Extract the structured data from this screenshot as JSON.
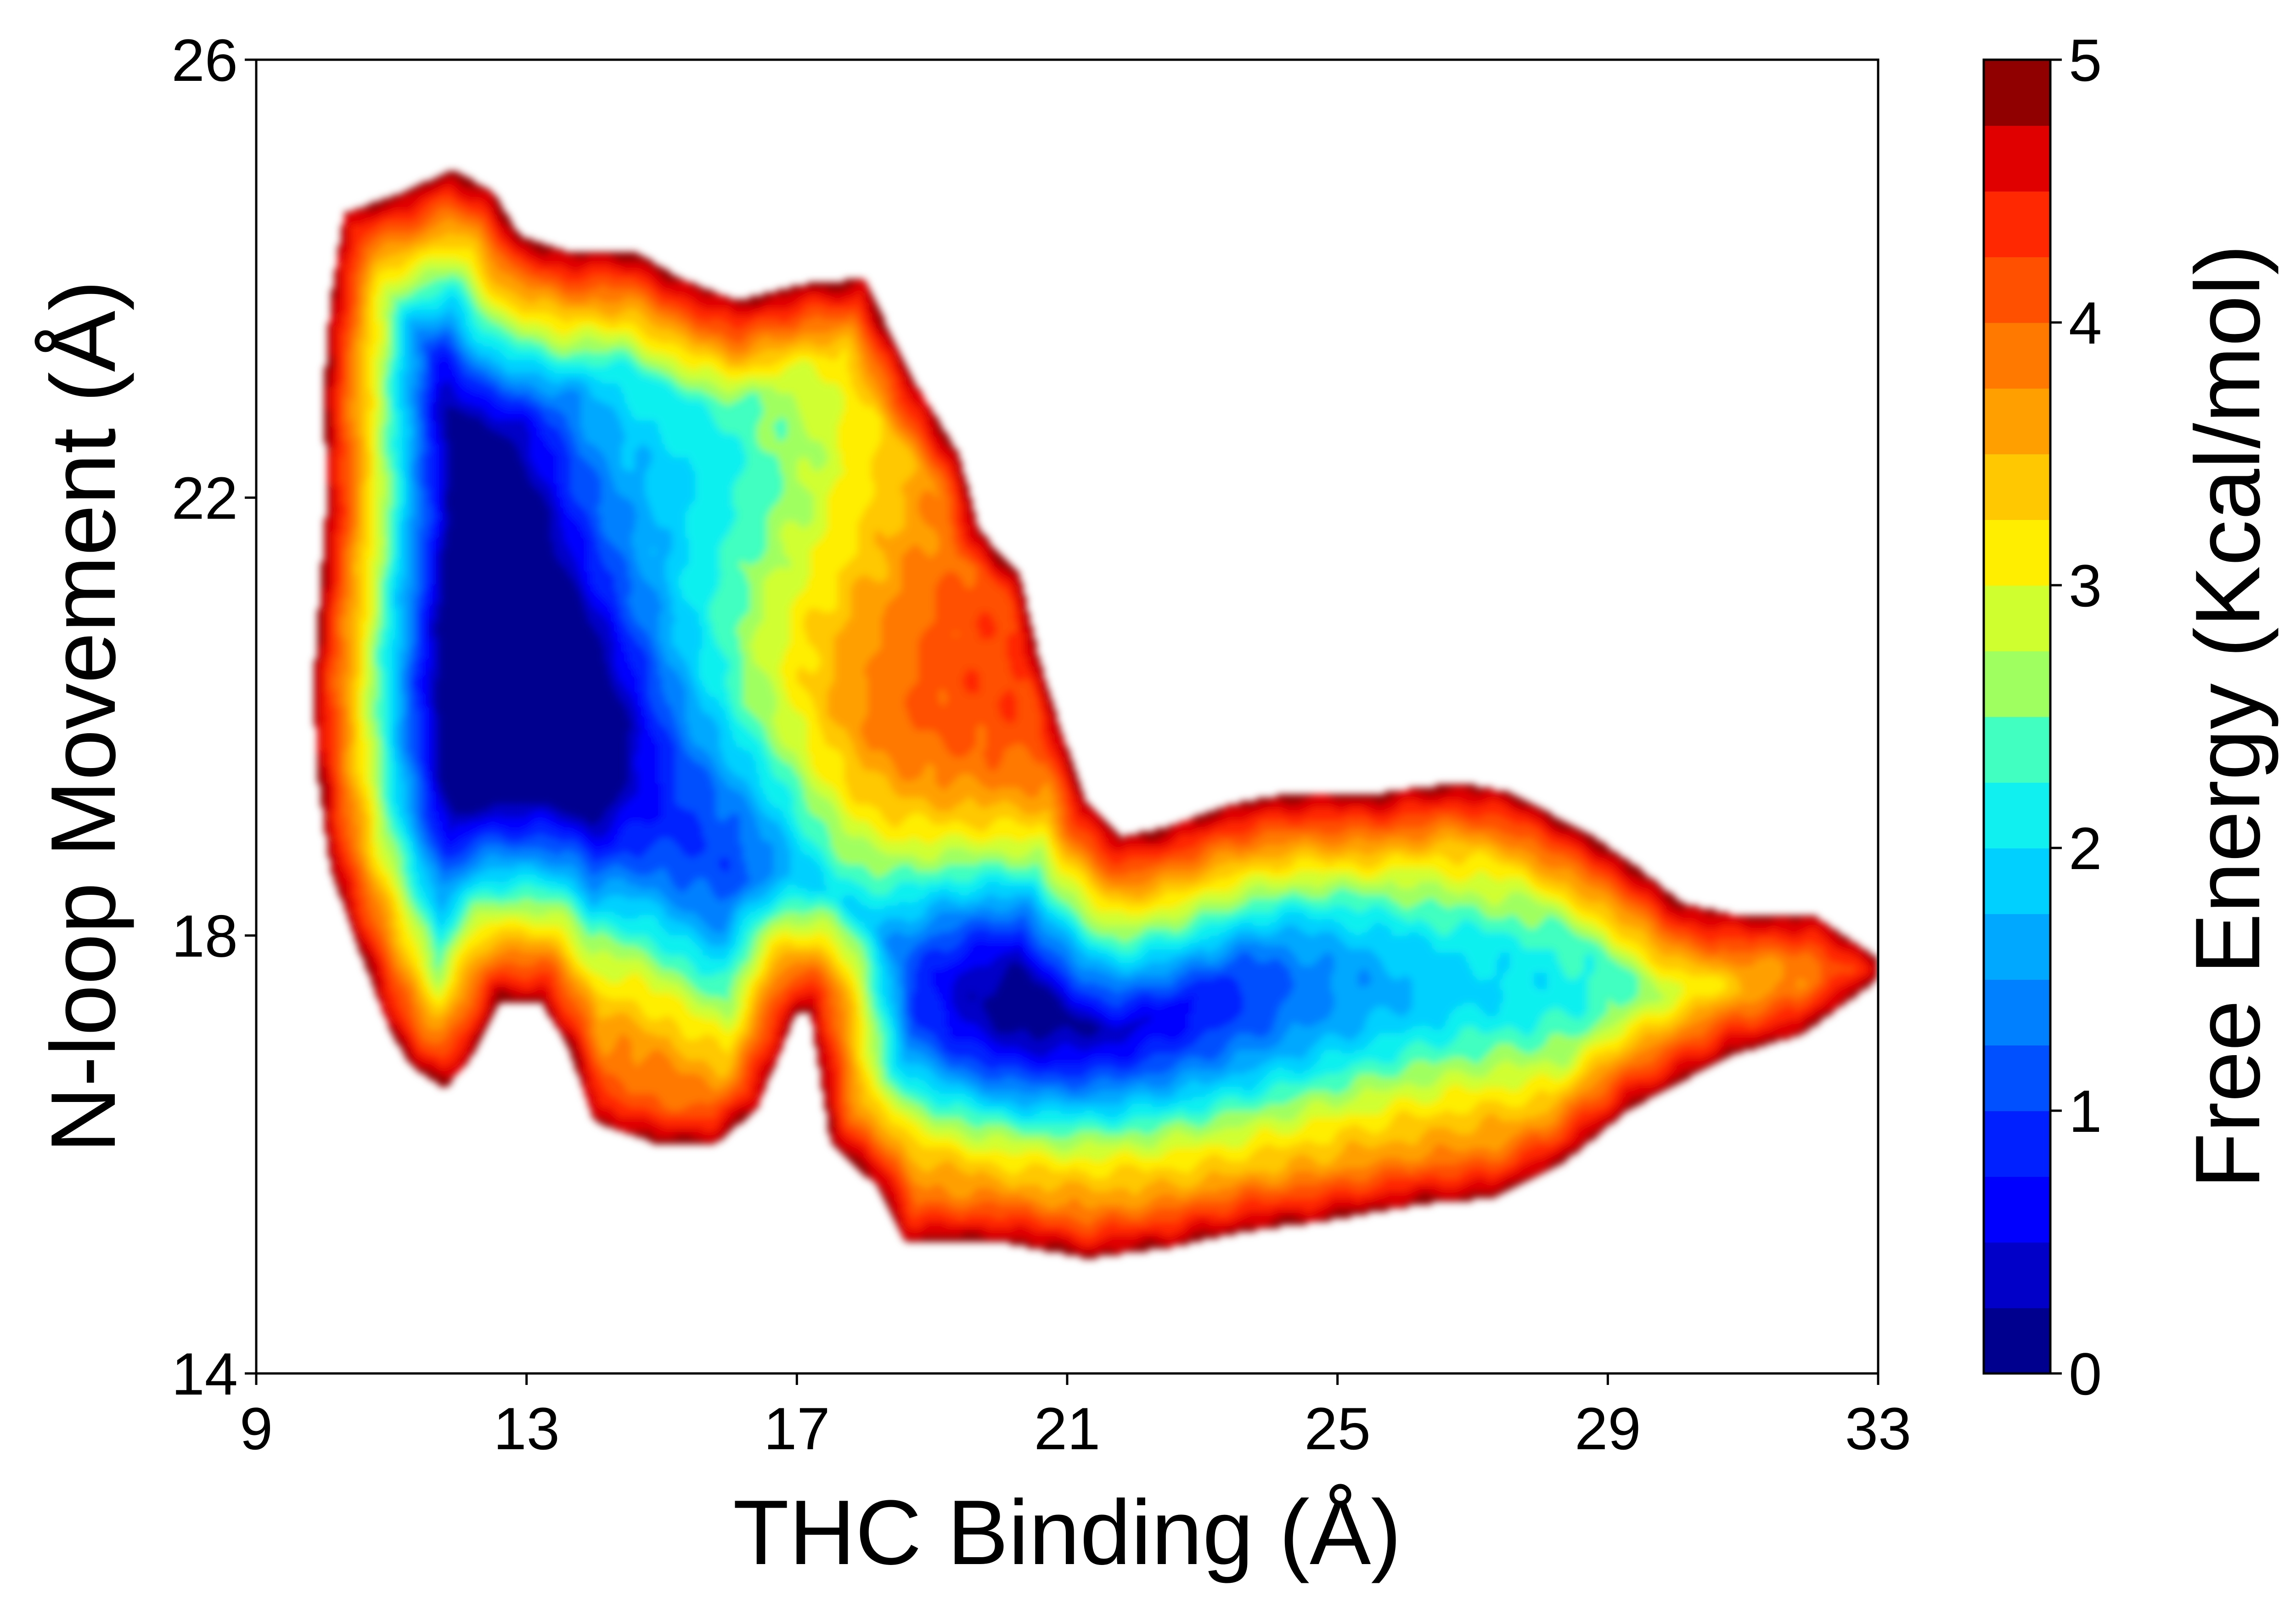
{
  "chart_data": {
    "type": "heatmap",
    "subtype": "filled-contour free energy landscape",
    "xlabel": "THC Binding (Å)",
    "ylabel": "N-loop Movement (Å)",
    "xlim": [
      9,
      33
    ],
    "ylim": [
      14,
      26
    ],
    "x_ticks": [
      "9",
      "13",
      "17",
      "21",
      "25",
      "29",
      "33"
    ],
    "y_ticks": [
      "14",
      "18",
      "22",
      "26"
    ],
    "colorbar": {
      "label": "Free Energy (Kcal/mol)",
      "range": [
        0,
        5
      ],
      "ticks": [
        "0",
        "1",
        "2",
        "3",
        "4",
        "5"
      ],
      "levels": 20,
      "colormap": "jet",
      "colors": [
        "#00008f",
        "#0000c8",
        "#0000ff",
        "#0020ff",
        "#0050ff",
        "#0080ff",
        "#00a8ff",
        "#00d0ff",
        "#10f0f0",
        "#40ffc0",
        "#70ff90",
        "#a0ff60",
        "#d0ff30",
        "#ffee00",
        "#ffc800",
        "#ffa000",
        "#ff7800",
        "#ff5000",
        "#ff2800",
        "#e00000",
        "#900000"
      ]
    },
    "minima": [
      {
        "x": 11.8,
        "y": 21.2,
        "energy": 0.1
      },
      {
        "x": 13.6,
        "y": 19.6,
        "energy": 0.4
      },
      {
        "x": 16.0,
        "y": 18.6,
        "energy": 0.6
      },
      {
        "x": 20.5,
        "y": 17.1,
        "energy": 1.2
      },
      {
        "x": 25.5,
        "y": 17.7,
        "energy": 1.6
      },
      {
        "x": 14.3,
        "y": 22.5,
        "energy": 2.1
      },
      {
        "x": 17.2,
        "y": 22.6,
        "energy": 2.6
      }
    ]
  }
}
